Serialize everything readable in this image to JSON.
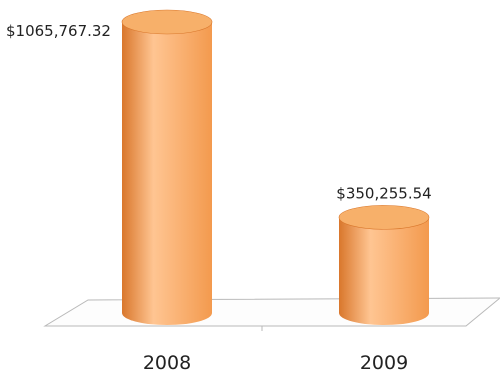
{
  "chart_data": {
    "type": "bar",
    "style": "3d-cylinder",
    "categories": [
      "2008",
      "2009"
    ],
    "values": [
      1065767.32,
      350255.54
    ],
    "data_labels": [
      "$1065,767.32",
      "$350,255.54"
    ],
    "title": "",
    "xlabel": "",
    "ylabel": "",
    "ylim": [
      0,
      1065767.32
    ],
    "grid": false,
    "legend": "none",
    "colors": {
      "bar_fill": "#f39a4e",
      "bar_light": "#ffc592",
      "bar_dark": "#d9772c",
      "bar_top": "#f7b06a",
      "floor_line": "#b9b9b9",
      "text": "#222222"
    }
  }
}
